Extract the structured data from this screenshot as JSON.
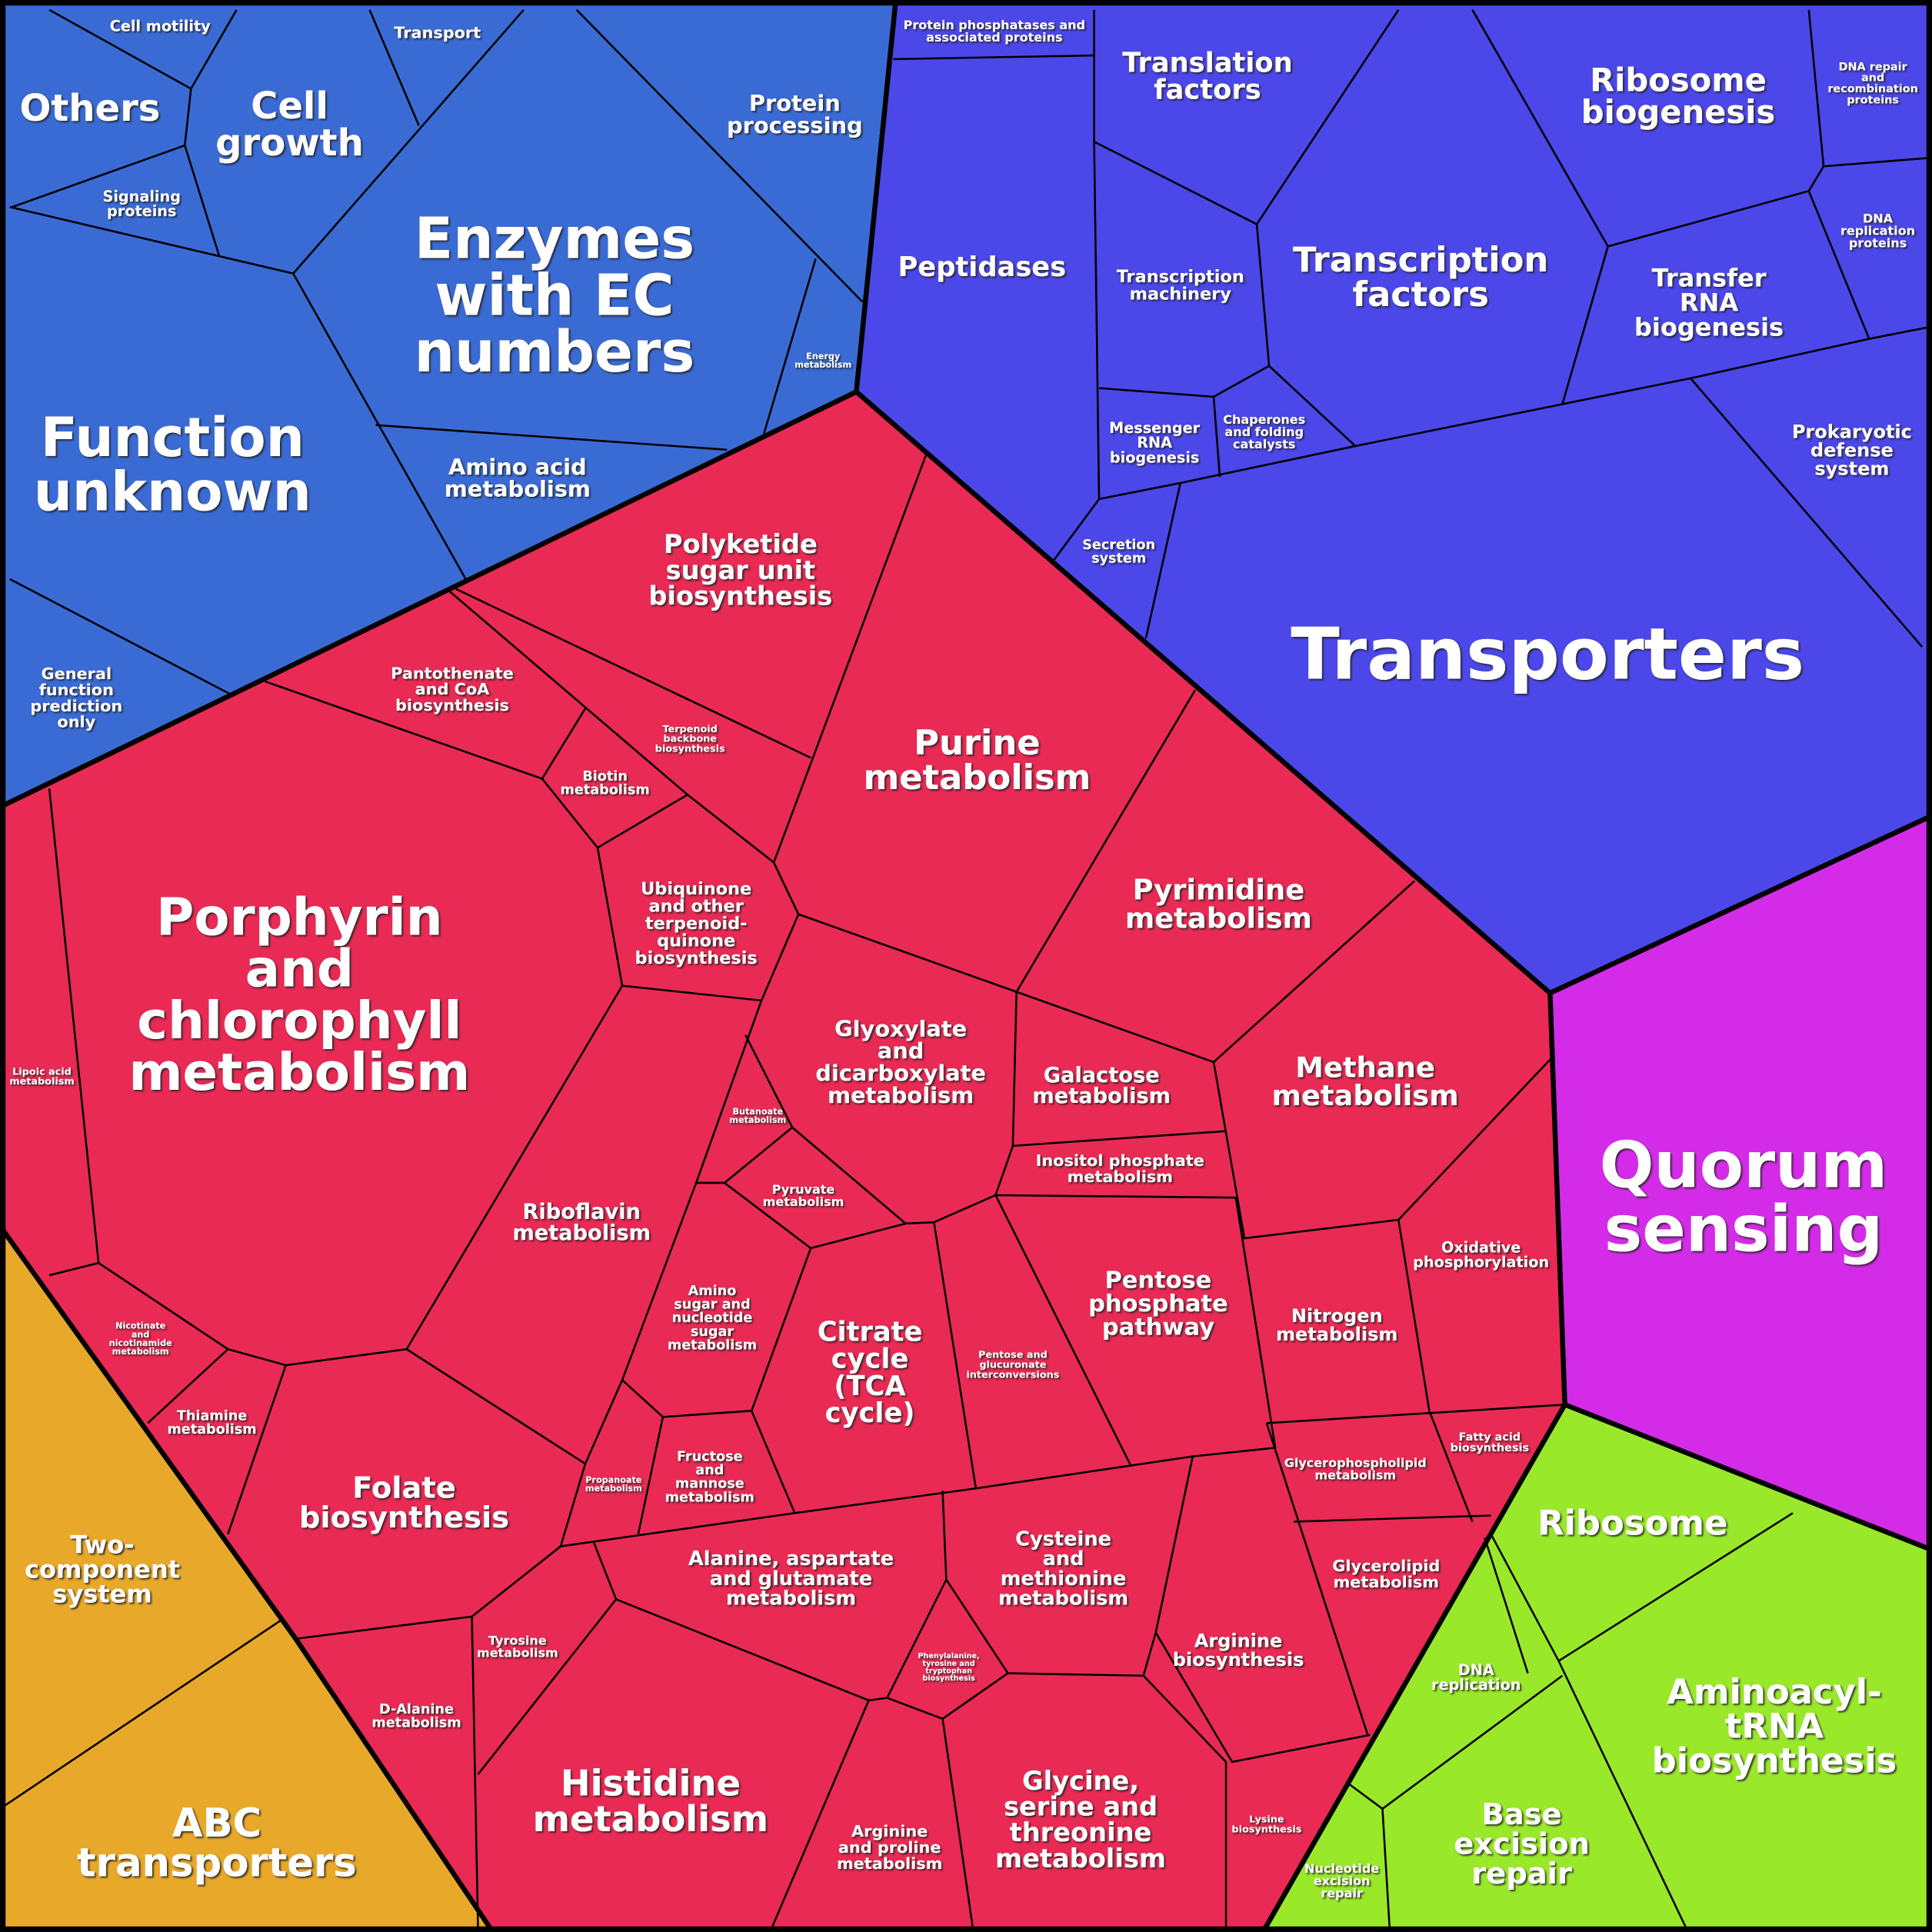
{
  "groups": [
    {
      "color": "#3a6bd4",
      "cells": [
        {
          "lines": [
            "Cell motility"
          ]
        },
        {
          "lines": [
            "Transport"
          ]
        },
        {
          "lines": [
            "Others"
          ]
        },
        {
          "lines": [
            "Cell",
            "growth"
          ]
        },
        {
          "lines": [
            "Signaling",
            "proteins"
          ]
        },
        {
          "lines": [
            "Enzymes",
            "with EC",
            "numbers"
          ]
        },
        {
          "lines": [
            "Protein",
            "processing"
          ]
        },
        {
          "lines": [
            "Energy",
            "metabolism"
          ]
        },
        {
          "lines": [
            "Function",
            "unknown"
          ]
        },
        {
          "lines": [
            "Amino acid",
            "metabolism"
          ]
        },
        {
          "lines": [
            "General",
            "function",
            "prediction",
            "only"
          ]
        }
      ]
    },
    {
      "color": "#4b47e8",
      "cells": [
        {
          "lines": [
            "Protein phosphatases and",
            "associated proteins"
          ]
        },
        {
          "lines": [
            "Translation",
            "factors"
          ]
        },
        {
          "lines": [
            "Ribosome",
            "biogenesis"
          ]
        },
        {
          "lines": [
            "DNA repair",
            "and",
            "recombination",
            "proteins"
          ]
        },
        {
          "lines": [
            "Peptidases"
          ]
        },
        {
          "lines": [
            "Transcription",
            "machinery"
          ]
        },
        {
          "lines": [
            "Transcription",
            "factors"
          ]
        },
        {
          "lines": [
            "Transfer",
            "RNA",
            "biogenesis"
          ]
        },
        {
          "lines": [
            "DNA",
            "replication",
            "proteins"
          ]
        },
        {
          "lines": [
            "Messenger",
            "RNA",
            "biogenesis"
          ]
        },
        {
          "lines": [
            "Chaperones",
            "and folding",
            "catalysts"
          ]
        },
        {
          "lines": [
            "Prokaryotic",
            "defense",
            "system"
          ]
        },
        {
          "lines": [
            "Secretion",
            "system"
          ]
        },
        {
          "lines": [
            "Transporters"
          ]
        }
      ]
    },
    {
      "color": "#d42be8",
      "cells": [
        {
          "lines": [
            "Quorum",
            "sensing"
          ]
        }
      ]
    },
    {
      "color": "#9ae82a",
      "cells": [
        {
          "lines": [
            "Ribosome"
          ]
        },
        {
          "lines": [
            "Aminoacyl-",
            "tRNA",
            "biosynthesis"
          ]
        },
        {
          "lines": [
            "DNA",
            "replication"
          ]
        },
        {
          "lines": [
            "Base",
            "excision",
            "repair"
          ]
        },
        {
          "lines": [
            "Nucleotide",
            "excision",
            "repair"
          ]
        }
      ]
    },
    {
      "color": "#e8a82a",
      "cells": [
        {
          "lines": [
            "Two-",
            "component",
            "system"
          ]
        },
        {
          "lines": [
            "ABC",
            "transporters"
          ]
        }
      ]
    },
    {
      "color": "#e82a54",
      "cells": [
        {
          "lines": [
            "Polyketide",
            "sugar unit",
            "biosynthesis"
          ]
        },
        {
          "lines": [
            "Pantothenate",
            "and CoA",
            "biosynthesis"
          ]
        },
        {
          "lines": [
            "Terpenoid",
            "backbone",
            "biosynthesis"
          ]
        },
        {
          "lines": [
            "Biotin",
            "metabolism"
          ]
        },
        {
          "lines": [
            "Purine",
            "metabolism"
          ]
        },
        {
          "lines": [
            "Porphyrin",
            "and",
            "chlorophyll",
            "metabolism"
          ]
        },
        {
          "lines": [
            "Ubiquinone",
            "and other",
            "terpenoid-",
            "quinone",
            "biosynthesis"
          ]
        },
        {
          "lines": [
            "Pyrimidine",
            "metabolism"
          ]
        },
        {
          "lines": [
            "Lipoic acid",
            "metabolism"
          ]
        },
        {
          "lines": [
            "Glyoxylate",
            "and",
            "dicarboxylate",
            "metabolism"
          ]
        },
        {
          "lines": [
            "Galactose",
            "metabolism"
          ]
        },
        {
          "lines": [
            "Methane",
            "metabolism"
          ]
        },
        {
          "lines": [
            "Butanoate",
            "metabolism"
          ]
        },
        {
          "lines": [
            "Inositol phosphate",
            "metabolism"
          ]
        },
        {
          "lines": [
            "Riboflavin",
            "metabolism"
          ]
        },
        {
          "lines": [
            "Pyruvate",
            "metabolism"
          ]
        },
        {
          "lines": [
            "Oxidative",
            "phosphorylation"
          ]
        },
        {
          "lines": [
            "Pentose",
            "phosphate",
            "pathway"
          ]
        },
        {
          "lines": [
            "Amino",
            "sugar and",
            "nucleotide",
            "sugar",
            "metabolism"
          ]
        },
        {
          "lines": [
            "Citrate",
            "cycle",
            "(TCA",
            "cycle)"
          ]
        },
        {
          "lines": [
            "Nitrogen",
            "metabolism"
          ]
        },
        {
          "lines": [
            "Pentose and",
            "glucuronate",
            "interconversions"
          ]
        },
        {
          "lines": [
            "Nicotinate",
            "and",
            "nicotinamide",
            "metabolism"
          ]
        },
        {
          "lines": [
            "Thiamine",
            "metabolism"
          ]
        },
        {
          "lines": [
            "Fatty acid",
            "biosynthesis"
          ]
        },
        {
          "lines": [
            "Glycerophospholipid",
            "metabolism"
          ]
        },
        {
          "lines": [
            "Folate",
            "biosynthesis"
          ]
        },
        {
          "lines": [
            "Propanoate",
            "metabolism"
          ]
        },
        {
          "lines": [
            "Fructose",
            "and",
            "mannose",
            "metabolism"
          ]
        },
        {
          "lines": [
            "Alanine, aspartate",
            "and glutamate",
            "metabolism"
          ]
        },
        {
          "lines": [
            "Cysteine",
            "and",
            "methionine",
            "metabolism"
          ]
        },
        {
          "lines": [
            "Glycerolipid",
            "metabolism"
          ]
        },
        {
          "lines": [
            "Arginine",
            "biosynthesis"
          ]
        },
        {
          "lines": [
            "Tyrosine",
            "metabolism"
          ]
        },
        {
          "lines": [
            "D-Alanine",
            "metabolism"
          ]
        },
        {
          "lines": [
            "Phenylalanine,",
            "tyrosine and",
            "tryptophan",
            "biosynthesis"
          ]
        },
        {
          "lines": [
            "Glycine,",
            "serine and",
            "threonine",
            "metabolism"
          ]
        },
        {
          "lines": [
            "Histidine",
            "metabolism"
          ]
        },
        {
          "lines": [
            "Arginine",
            "and proline",
            "metabolism"
          ]
        },
        {
          "lines": [
            "Lysine",
            "biosynthesis"
          ]
        }
      ]
    }
  ]
}
